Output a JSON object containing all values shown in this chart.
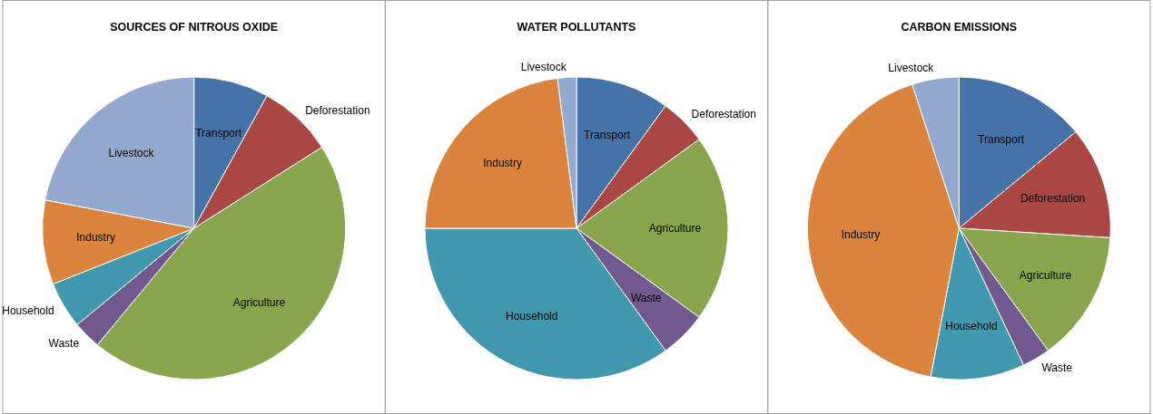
{
  "chart_data": [
    {
      "type": "pie",
      "title": "SOURCES OF NITROUS OXIDE",
      "categories": [
        "Transport",
        "Deforestation",
        "Agriculture",
        "Waste",
        "Household",
        "Industry",
        "Livestock"
      ],
      "values": [
        8,
        8,
        45,
        3,
        5,
        9,
        22
      ],
      "colors": [
        "#4572a7",
        "#aa4643",
        "#89a54e",
        "#71588f",
        "#4198af",
        "#db843d",
        "#93a9cf"
      ]
    },
    {
      "type": "pie",
      "title": "WATER POLLUTANTS",
      "categories": [
        "Transport",
        "Deforestation",
        "Agriculture",
        "Waste",
        "Household",
        "Industry",
        "Livestock"
      ],
      "values": [
        10,
        5,
        20,
        5,
        35,
        23,
        2
      ],
      "colors": [
        "#4572a7",
        "#aa4643",
        "#89a54e",
        "#71588f",
        "#4198af",
        "#db843d",
        "#93a9cf"
      ]
    },
    {
      "type": "pie",
      "title": "CARBON EMISSIONS",
      "categories": [
        "Transport",
        "Deforestation",
        "Agriculture",
        "Waste",
        "Household",
        "Industry",
        "Livestock"
      ],
      "values": [
        14,
        12,
        14,
        3,
        10,
        42,
        5
      ],
      "colors": [
        "#4572a7",
        "#aa4643",
        "#89a54e",
        "#71588f",
        "#4198af",
        "#db843d",
        "#93a9cf"
      ]
    }
  ]
}
